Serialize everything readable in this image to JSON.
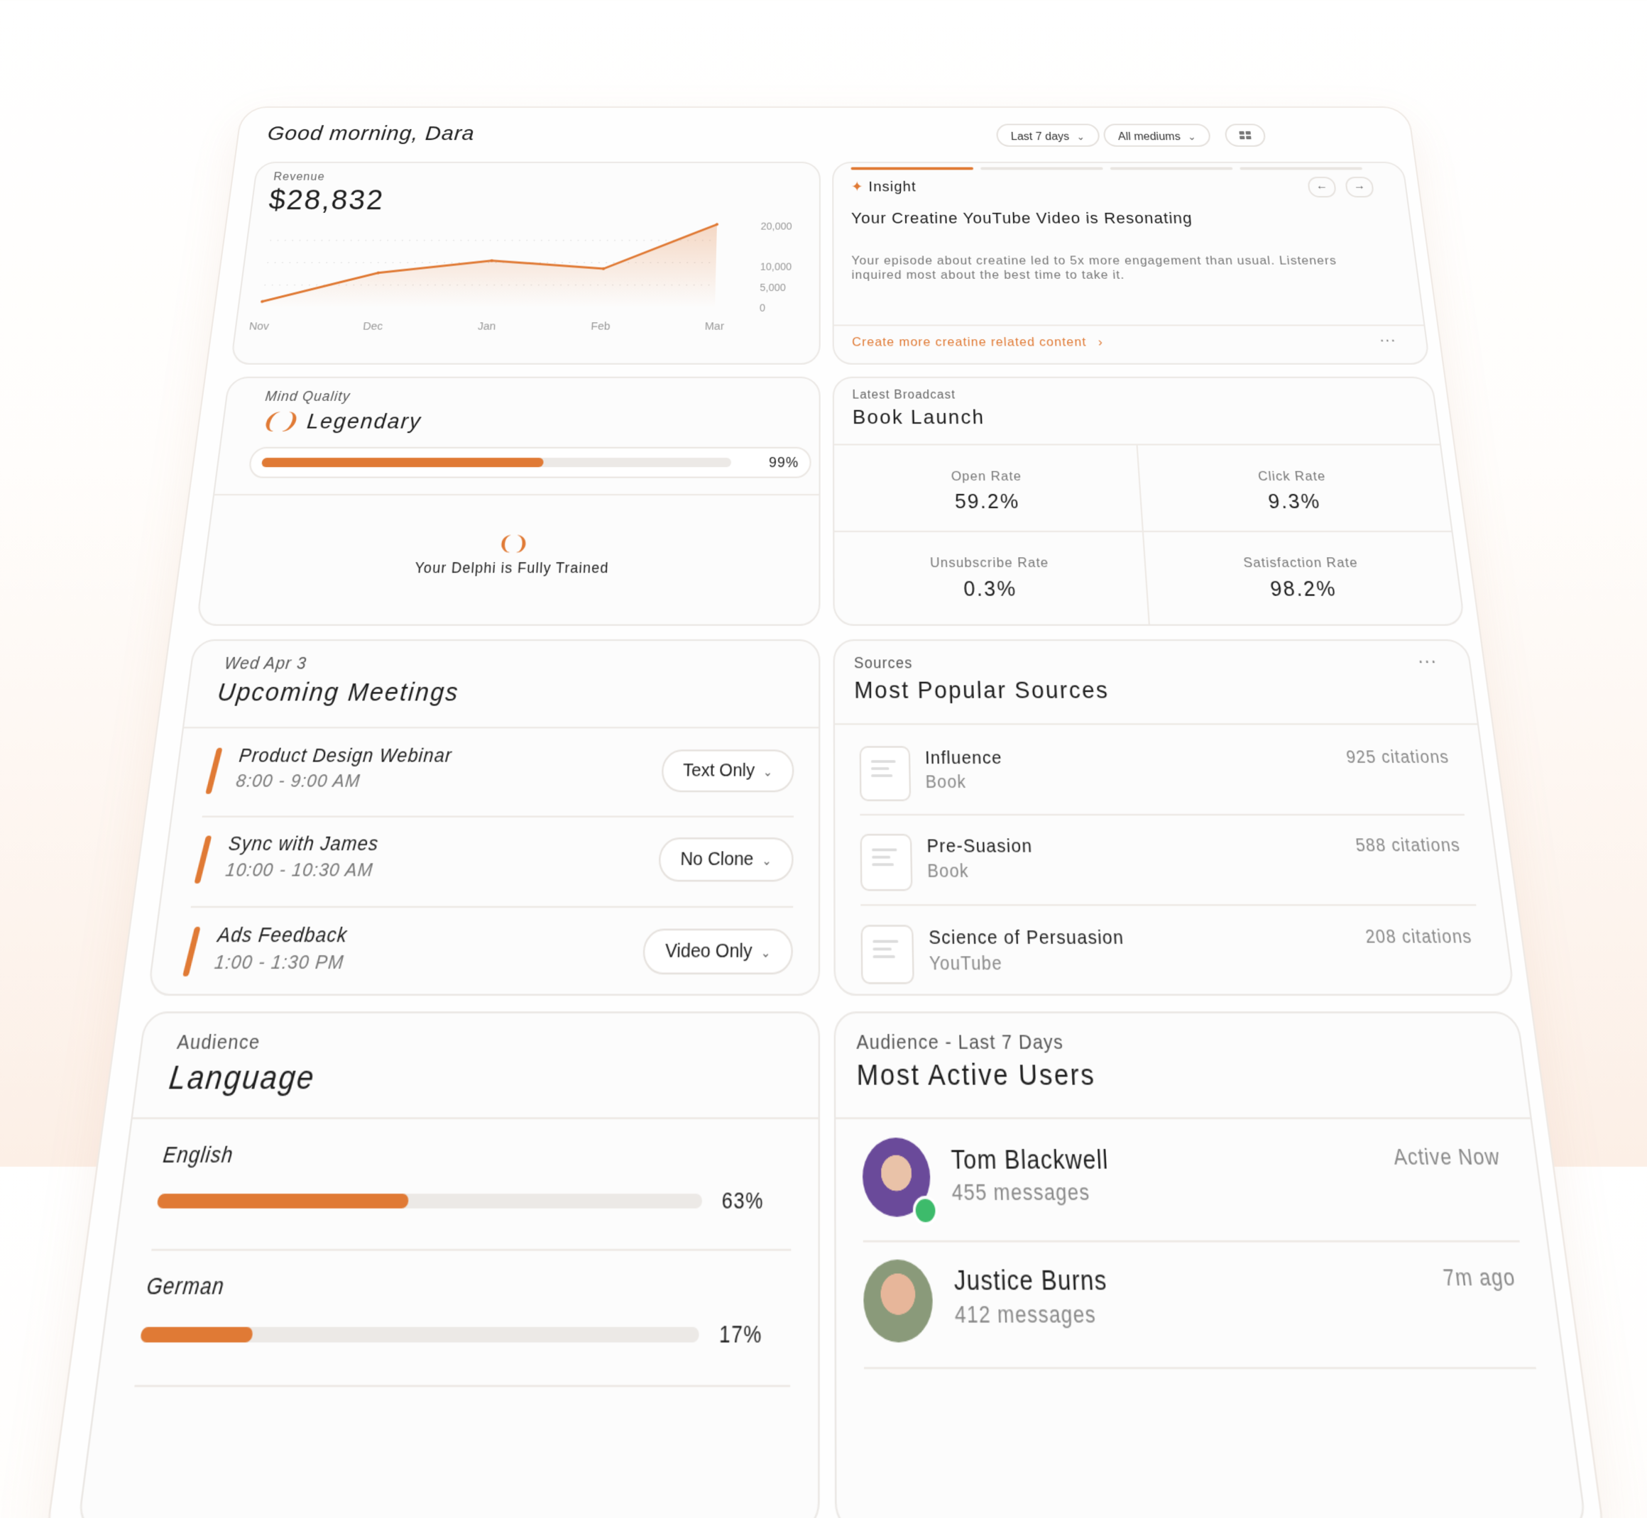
{
  "greeting": "Good morning, Dara",
  "filters": {
    "period": "Last 7 days",
    "medium": "All mediums"
  },
  "revenue": {
    "label": "Revenue",
    "value": "$28,832",
    "chart_data": {
      "type": "area",
      "categories": [
        "Nov",
        "Dec",
        "Jan",
        "Feb",
        "Mar"
      ],
      "values": [
        1500,
        8500,
        11500,
        9500,
        20500
      ],
      "y_ticks": [
        "20,000",
        "10,000",
        "5,000",
        "0"
      ],
      "x_ticks": [
        "Nov",
        "Dec",
        "Jan",
        "Feb",
        "Mar"
      ],
      "ylim": [
        0,
        22000
      ],
      "color": "#e07a35"
    }
  },
  "insight": {
    "tag": "Insight",
    "title": "Your Creatine YouTube Video is Resonating",
    "body": "Your episode about creatine led to 5x more engagement than usual. Listeners inquired most about the best time to take it.",
    "cta": "Create more creatine related content",
    "cta_arrow": "›",
    "more": "···"
  },
  "mind_quality": {
    "label": "Mind Quality",
    "level": "Legendary",
    "percent": "99%",
    "fill": 0.6,
    "trained": "Your Delphi is Fully Trained"
  },
  "broadcast": {
    "label": "Latest Broadcast",
    "title": "Book Launch",
    "metrics": [
      {
        "label": "Open Rate",
        "value": "59.2%"
      },
      {
        "label": "Click Rate",
        "value": "9.3%"
      },
      {
        "label": "Unsubscribe Rate",
        "value": "0.3%"
      },
      {
        "label": "Satisfaction Rate",
        "value": "98.2%"
      }
    ]
  },
  "meetings": {
    "date": "Wed Apr 3",
    "title": "Upcoming Meetings",
    "items": [
      {
        "title": "Product Design Webinar",
        "time": "8:00 - 9:00 AM",
        "mode": "Text Only"
      },
      {
        "title": "Sync with James",
        "time": "10:00 - 10:30 AM",
        "mode": "No Clone"
      },
      {
        "title": "Ads Feedback",
        "time": "1:00 - 1:30 PM",
        "mode": "Video Only"
      }
    ]
  },
  "sources": {
    "label": "Sources",
    "title": "Most Popular Sources",
    "more": "···",
    "items": [
      {
        "name": "Influence",
        "type": "Book",
        "citations": "925 citations"
      },
      {
        "name": "Pre-Suasion",
        "type": "Book",
        "citations": "588 citations"
      },
      {
        "name": "Science of Persuasion",
        "type": "YouTube",
        "citations": "208 citations"
      }
    ]
  },
  "language": {
    "label": "Audience",
    "title": "Language",
    "items": [
      {
        "name": "English",
        "percent": "63%",
        "fill": 0.46
      },
      {
        "name": "German",
        "percent": "17%",
        "fill": 0.2
      }
    ]
  },
  "active_users": {
    "label": "Audience - Last 7 Days",
    "title": "Most Active Users",
    "items": [
      {
        "name": "Tom Blackwell",
        "messages": "455 messages",
        "status": "Active Now"
      },
      {
        "name": "Justice Burns",
        "messages": "412 messages",
        "status": "7m ago"
      }
    ]
  }
}
